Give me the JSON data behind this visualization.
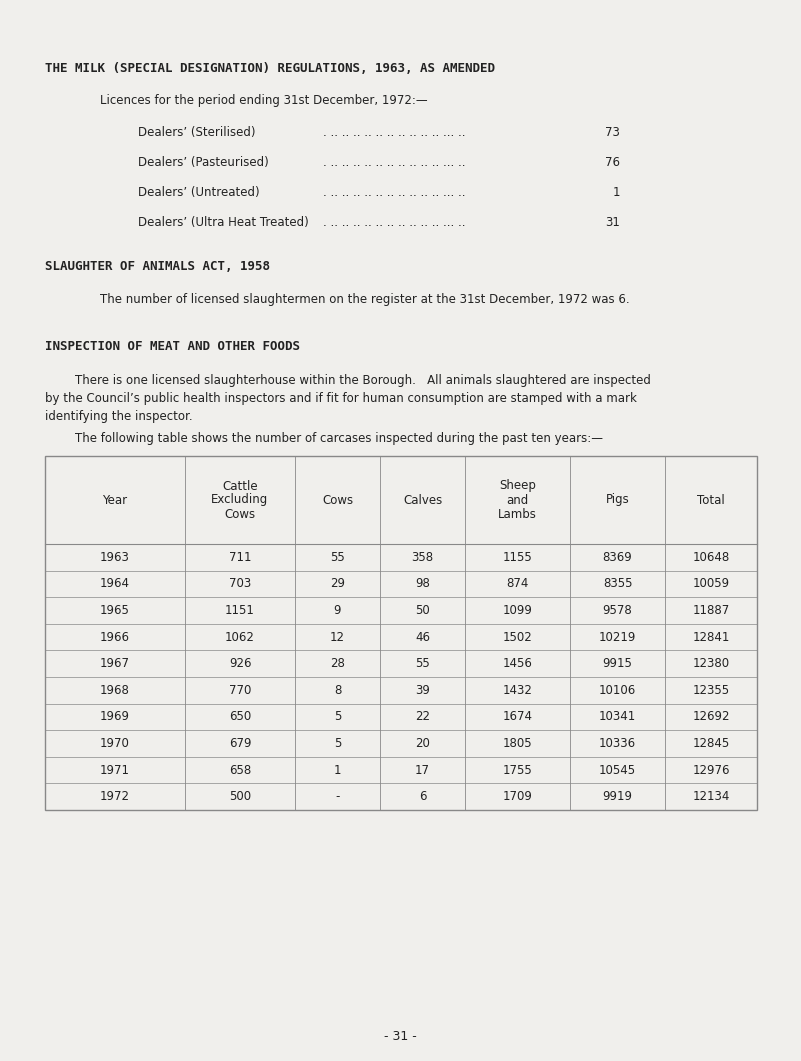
{
  "bg_color": "#f0efec",
  "title1": "THE MILK (SPECIAL DESIGNATION) REGULATIONS, 1963, AS AMENDED",
  "licences_intro": "Licences for the period ending 31st December, 1972:—",
  "dealers": [
    {
      "label": "Dealers’ (Sterilised)",
      "value": "73"
    },
    {
      "label": "Dealers’ (Pasteurised)",
      "value": "76"
    },
    {
      "label": "Dealers’ (Untreated)",
      "value": "1"
    },
    {
      "label": "Dealers’ (Ultra Heat Treated)",
      "value": "31"
    }
  ],
  "slaughter_title": "SLAUGHTER OF ANIMALS ACT, 1958",
  "slaughter_text": "The number of licensed slaughtermen on the register at the 31st December, 1972 was 6.",
  "inspection_title": "INSPECTION OF MEAT AND OTHER FOODS",
  "inspection_para": [
    "        There is one licensed slaughterhouse within the Borough.   All animals slaughtered are inspected",
    "by the Council’s public health inspectors and if fit for human consumption are stamped with a mark",
    "identifying the inspector."
  ],
  "table_intro": "        The following table shows the number of carcases inspected during the past ten years:—",
  "table_headers": [
    "Year",
    "Cattle\nExcluding\nCows",
    "Cows",
    "Calves",
    "Sheep\nand\nLambs",
    "Pigs",
    "Total"
  ],
  "table_data": [
    [
      "1963",
      "711",
      "55",
      "358",
      "1155",
      "8369",
      "10648"
    ],
    [
      "1964",
      "703",
      "29",
      "98",
      "874",
      "8355",
      "10059"
    ],
    [
      "1965",
      "1151",
      "9",
      "50",
      "1099",
      "9578",
      "11887"
    ],
    [
      "1966",
      "1062",
      "12",
      "46",
      "1502",
      "10219",
      "12841"
    ],
    [
      "1967",
      "926",
      "28",
      "55",
      "1456",
      "9915",
      "12380"
    ],
    [
      "1968",
      "770",
      "8",
      "39",
      "1432",
      "10106",
      "12355"
    ],
    [
      "1969",
      "650",
      "5",
      "22",
      "1674",
      "10341",
      "12692"
    ],
    [
      "1970",
      "679",
      "5",
      "20",
      "1805",
      "10336",
      "12845"
    ],
    [
      "1971",
      "658",
      "1",
      "17",
      "1755",
      "10545",
      "12976"
    ],
    [
      "1972",
      "500",
      "-",
      "6",
      "1709",
      "9919",
      "12134"
    ]
  ],
  "page_number": "- 31 -",
  "text_color": "#222222",
  "table_line_color": "#888888"
}
